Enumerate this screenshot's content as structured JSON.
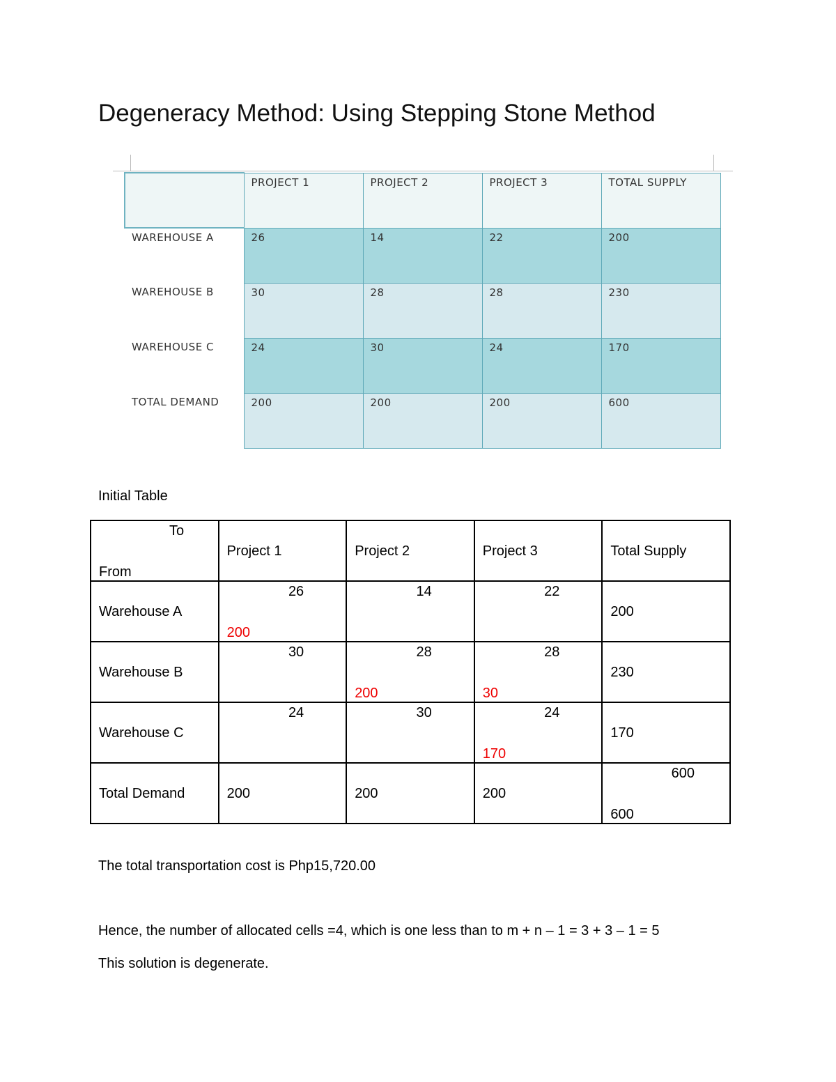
{
  "title": "Degeneracy Method: Using Stepping Stone Method",
  "image_table": {
    "headers": [
      "PROJECT 1",
      "PROJECT 2",
      "PROJECT 3",
      "TOTAL SUPPLY"
    ],
    "rows": [
      {
        "label": "WAREHOUSE A",
        "values": [
          "26",
          "14",
          "22",
          "200"
        ]
      },
      {
        "label": "WAREHOUSE B",
        "values": [
          "30",
          "28",
          "28",
          "230"
        ]
      },
      {
        "label": "WAREHOUSE C",
        "values": [
          "24",
          "30",
          "24",
          "170"
        ]
      },
      {
        "label": "TOTAL DEMAND",
        "values": [
          "200",
          "200",
          "200",
          "600"
        ]
      }
    ],
    "colors": {
      "dark_row": "#a6d8de",
      "light_row": "#d6e9ee",
      "header": "#eef6f6",
      "border": "#5fa9b8"
    }
  },
  "initial_table": {
    "heading": "Initial Table",
    "corner_to": "To",
    "corner_from": "From",
    "headers": [
      "Project 1",
      "Project 2",
      "Project 3",
      "Total Supply"
    ],
    "rows": [
      {
        "label": "Warehouse A",
        "cells": [
          {
            "cost": "26",
            "alloc": "200"
          },
          {
            "cost": "14",
            "alloc": ""
          },
          {
            "cost": "22",
            "alloc": ""
          }
        ],
        "supply": "200"
      },
      {
        "label": "Warehouse B",
        "cells": [
          {
            "cost": "30",
            "alloc": ""
          },
          {
            "cost": "28",
            "alloc": "200"
          },
          {
            "cost": "28",
            "alloc": "30"
          }
        ],
        "supply": "230"
      },
      {
        "label": "Warehouse C",
        "cells": [
          {
            "cost": "24",
            "alloc": ""
          },
          {
            "cost": "30",
            "alloc": ""
          },
          {
            "cost": "24",
            "alloc": "170"
          }
        ],
        "supply": "170"
      }
    ],
    "demand": {
      "label": "Total Demand",
      "values": [
        "200",
        "200",
        "200"
      ],
      "total_top": "600",
      "total_bottom": "600"
    },
    "alloc_color": "#e00000"
  },
  "text": {
    "cost": "The total transportation cost is Php15,720.00",
    "cells": "Hence, the number of allocated cells =4, which is one less than to m + n – 1 = 3 + 3 – 1 = 5",
    "degenerate": "This solution is degenerate."
  }
}
